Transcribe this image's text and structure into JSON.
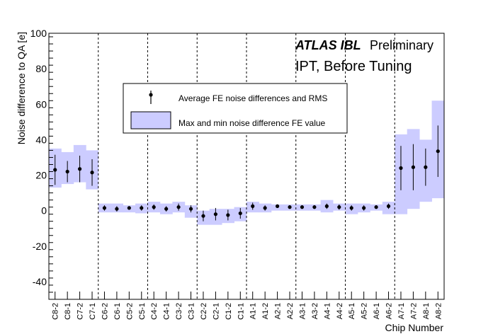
{
  "chart_data": {
    "type": "scatter",
    "ylabel": "Noise difference to QA [e]",
    "xlabel": "Chip Number",
    "ylim": [
      -50,
      100
    ],
    "yticks": [
      -40,
      -20,
      0,
      20,
      40,
      60,
      80,
      100
    ],
    "categories": [
      "C8-2",
      "C8-1",
      "C7-2",
      "C7-1",
      "C6-2",
      "C6-1",
      "C5-2",
      "C5-1",
      "C4-2",
      "C4-1",
      "C3-2",
      "C3-1",
      "C2-2",
      "C2-1",
      "C1-2",
      "C1-1",
      "A1-1",
      "A1-2",
      "A2-1",
      "A2-2",
      "A3-1",
      "A3-2",
      "A4-1",
      "A4-2",
      "A5-1",
      "A5-2",
      "A6-1",
      "A6-2",
      "A7-1",
      "A7-2",
      "A8-1",
      "A8-2"
    ],
    "series": [
      {
        "name": "Average FE noise differences and RMS",
        "values": [
          23,
          22,
          23.5,
          21.5,
          1.5,
          1,
          1.5,
          1.5,
          2,
          1,
          2,
          1,
          -3,
          -2,
          -2.5,
          -1.5,
          2.5,
          1.5,
          2.5,
          2,
          2,
          2,
          2.5,
          2,
          1.5,
          1.5,
          2,
          2.5,
          24,
          24.5,
          24.5,
          33.5
        ],
        "rms": [
          8.5,
          6,
          7.5,
          7.5,
          1.5,
          1.5,
          1,
          1.5,
          1.5,
          1.5,
          2,
          2,
          3,
          3.5,
          3,
          3,
          2,
          1.5,
          1,
          1,
          1,
          1,
          1.5,
          1.5,
          1.5,
          1.5,
          1,
          1.5,
          12.5,
          13,
          10.5,
          14.5
        ]
      },
      {
        "name": "Max and min noise difference FE value",
        "min": [
          13,
          15,
          16,
          12,
          -1,
          -1,
          -1,
          -1.5,
          -1,
          -2,
          -1,
          -4,
          -8,
          -8,
          -7,
          -6,
          -1,
          -1,
          0,
          0,
          0,
          0,
          -1,
          0,
          -2,
          -1,
          0,
          -2,
          -2,
          1,
          5,
          7
        ],
        "max": [
          35,
          33,
          37,
          34,
          4,
          4,
          3,
          4,
          5,
          4,
          5,
          3,
          0,
          1,
          1,
          2,
          5,
          4,
          3.5,
          3.5,
          3.5,
          3.5,
          6,
          4,
          4,
          4,
          3.5,
          5,
          43,
          46,
          40,
          62
        ]
      }
    ],
    "legend": "upper-center",
    "annotations": {
      "atlas": "ATLAS IBL",
      "preliminary": "Preliminary",
      "subtitle": "IPT, Before Tuning"
    },
    "dashed_dividers_after": [
      4,
      8,
      12,
      16,
      20,
      24,
      28
    ],
    "colors": {
      "band": "#ccccff",
      "marker": "#000000",
      "frame": "#000000"
    }
  }
}
